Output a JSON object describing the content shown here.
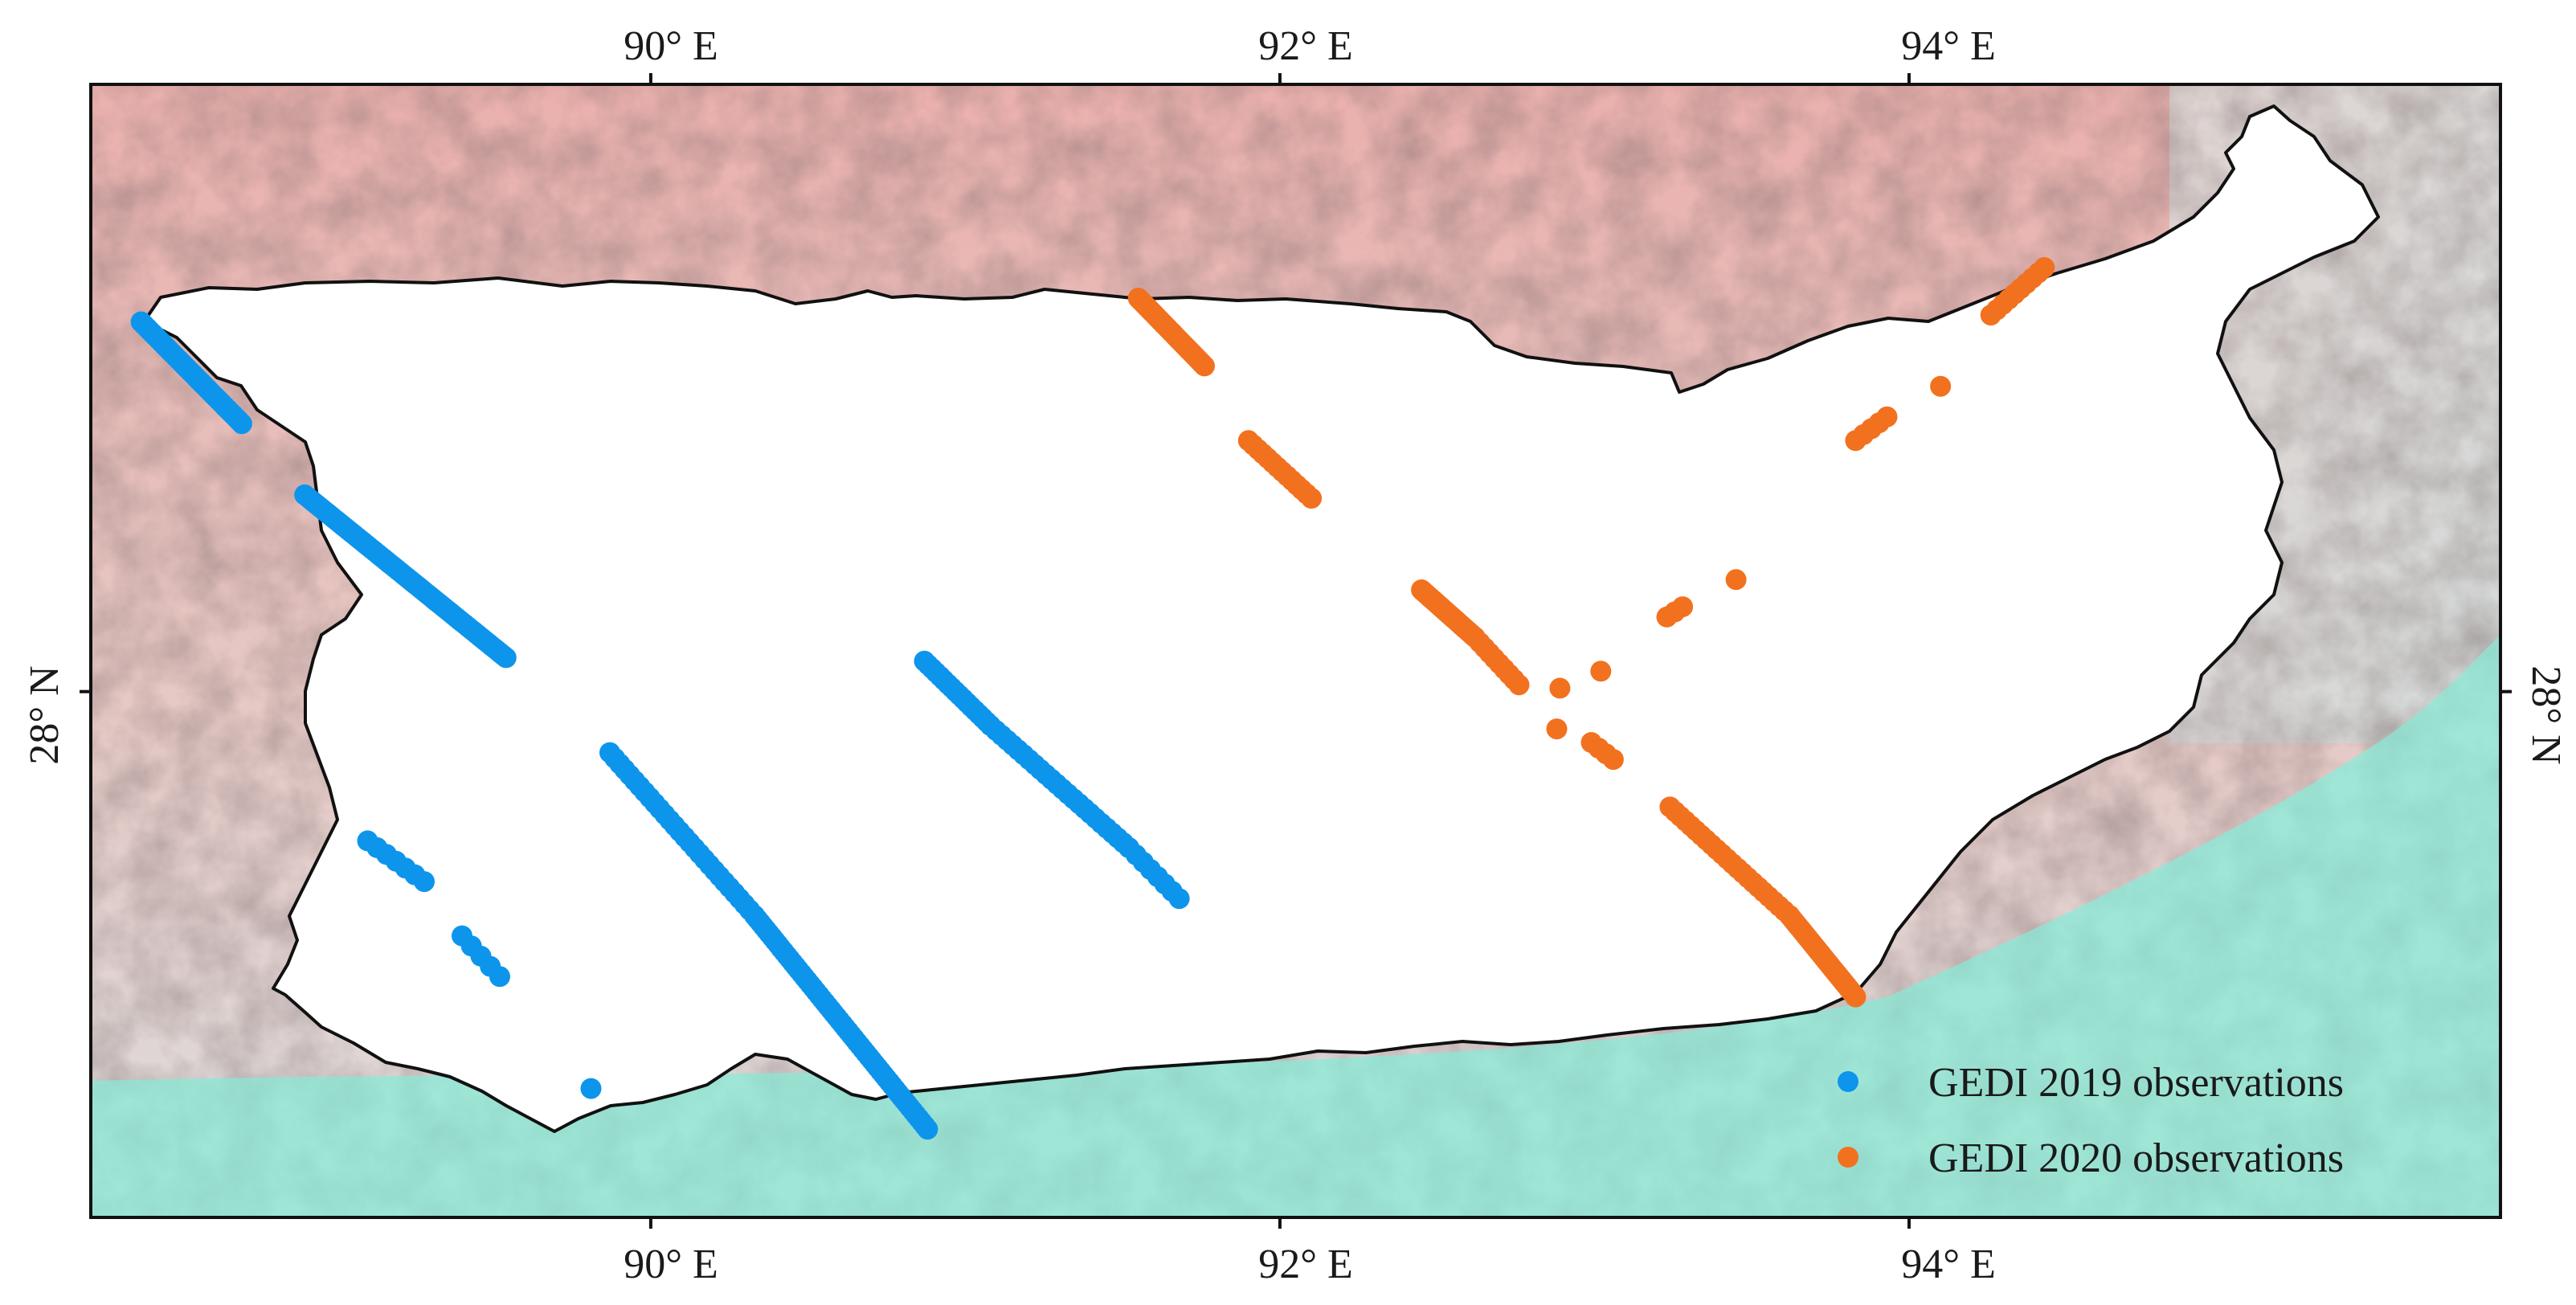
{
  "map": {
    "longitude_ticks": [
      {
        "value": 90,
        "label": "90° E"
      },
      {
        "value": 92,
        "label": "92° E"
      },
      {
        "value": 94,
        "label": "94° E"
      }
    ],
    "latitude_ticks": [
      {
        "value": 28,
        "label": "28° N"
      }
    ],
    "extent": {
      "lon": [
        88.22,
        95.88
      ],
      "lat": [
        26.45,
        29.79
      ]
    },
    "colors": {
      "mountains": "#e9aaa7",
      "hillshade": "#d9d9d9",
      "lowland": "#9fe6d7",
      "outline": "#111111",
      "frame": "#111111"
    },
    "legend": {
      "placement": "bottom-right",
      "items": [
        {
          "label": "GEDI 2019 observations",
          "color": "#0d95ec"
        },
        {
          "label": "GEDI 2020 observations",
          "color": "#f2711f"
        }
      ]
    }
  },
  "chart_data": {
    "type": "scatter",
    "xlabel": "",
    "ylabel": "",
    "xlim": [
      88.22,
      95.88
    ],
    "ylim": [
      26.45,
      29.79
    ],
    "series": [
      {
        "name": "GEDI 2019 observations",
        "color": "#0d95ec",
        "tracks": [
          {
            "from": [
              88.38,
              29.09
            ],
            "to": [
              88.7,
              28.79
            ],
            "n": 36
          },
          {
            "from": [
              88.9,
              28.58
            ],
            "to": [
              89.54,
              28.1
            ],
            "n": 70
          },
          {
            "from": [
              90.87,
              28.09
            ],
            "to": [
              91.08,
              27.9
            ],
            "n": 18
          },
          {
            "from": [
              91.08,
              27.9
            ],
            "to": [
              91.52,
              27.54
            ],
            "n": 26
          },
          {
            "from": [
              91.52,
              27.54
            ],
            "to": [
              91.68,
              27.39
            ],
            "n": 8
          },
          {
            "from": [
              89.87,
              27.82
            ],
            "to": [
              90.33,
              27.34
            ],
            "n": 30
          },
          {
            "from": [
              90.33,
              27.34
            ],
            "to": [
              90.88,
              26.71
            ],
            "n": 60
          },
          {
            "from": [
              89.1,
              27.56
            ],
            "to": [
              89.28,
              27.44
            ],
            "n": 7
          },
          {
            "from": [
              89.4,
              27.28
            ],
            "to": [
              89.52,
              27.16
            ],
            "n": 5
          }
        ],
        "points": [
          [
            89.81,
            26.83
          ]
        ]
      },
      {
        "name": "GEDI 2020 observations",
        "color": "#f2711f",
        "tracks": [
          {
            "from": [
              91.55,
              29.16
            ],
            "to": [
              91.76,
              28.96
            ],
            "n": 30
          },
          {
            "from": [
              91.9,
              28.74
            ],
            "to": [
              92.1,
              28.57
            ],
            "n": 14
          },
          {
            "from": [
              92.45,
              28.3
            ],
            "to": [
              92.62,
              28.16
            ],
            "n": 34
          },
          {
            "from": [
              92.62,
              28.16
            ],
            "to": [
              92.76,
              28.02
            ],
            "n": 10
          },
          {
            "from": [
              93.24,
              27.66
            ],
            "to": [
              93.62,
              27.34
            ],
            "n": 24
          },
          {
            "from": [
              93.62,
              27.34
            ],
            "to": [
              93.83,
              27.1
            ],
            "n": 30
          },
          {
            "from": [
              94.26,
              29.11
            ],
            "to": [
              94.43,
              29.25
            ],
            "n": 10
          },
          {
            "from": [
              93.83,
              28.74
            ],
            "to": [
              93.93,
              28.81
            ],
            "n": 5
          },
          {
            "from": [
              93.23,
              28.22
            ],
            "to": [
              93.28,
              28.25
            ],
            "n": 3
          },
          {
            "from": [
              92.99,
              27.85
            ],
            "to": [
              93.06,
              27.8
            ],
            "n": 4
          }
        ],
        "points": [
          [
            94.1,
            28.9
          ],
          [
            93.45,
            28.33
          ],
          [
            92.89,
            28.01
          ],
          [
            92.88,
            27.89
          ],
          [
            93.02,
            28.06
          ]
        ]
      }
    ]
  }
}
